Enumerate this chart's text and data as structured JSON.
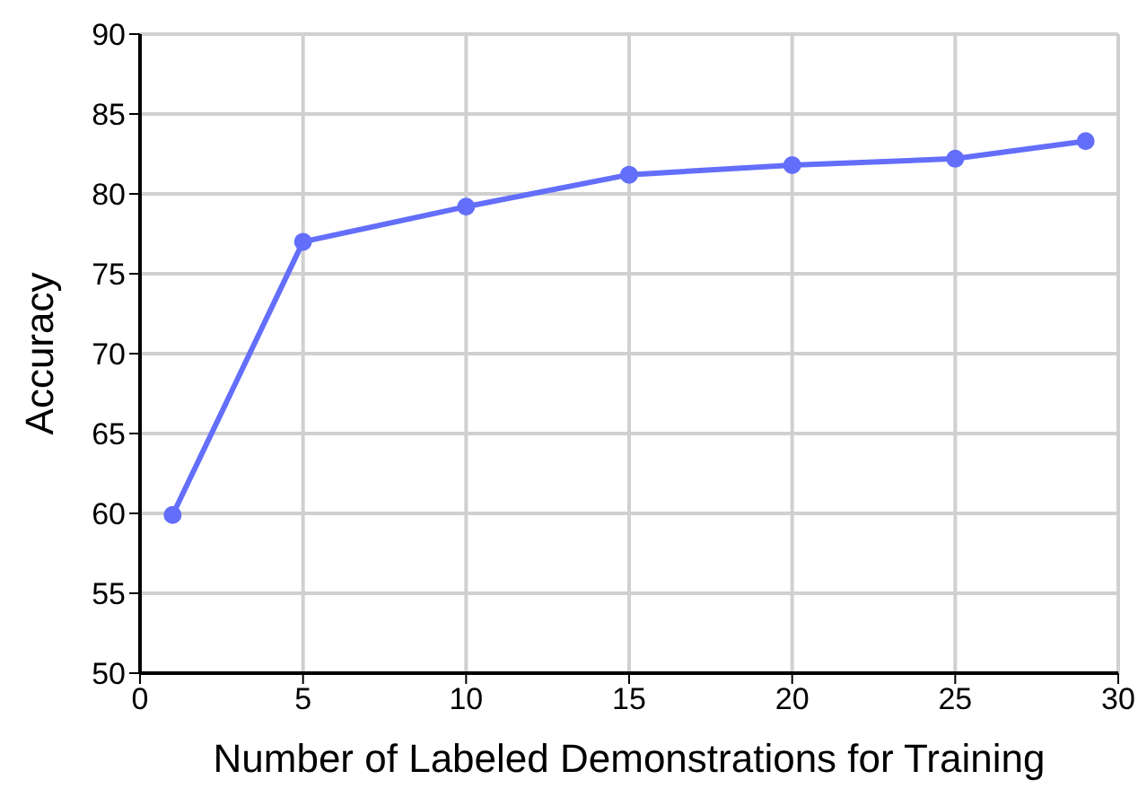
{
  "chart_data": {
    "type": "line",
    "xlabel": "Number of Labeled Demonstrations for Training",
    "ylabel": "Accuracy",
    "x": [
      1,
      5,
      10,
      15,
      20,
      25,
      29
    ],
    "series": [
      {
        "color": "#636efa",
        "values": [
          59.9,
          77.0,
          79.2,
          81.2,
          81.8,
          82.2,
          83.3
        ]
      }
    ],
    "xlim": [
      0,
      30
    ],
    "xticks": [
      0,
      5,
      10,
      15,
      20,
      25,
      30
    ],
    "ylim": [
      50,
      90
    ],
    "yticks": [
      50,
      55,
      60,
      65,
      70,
      75,
      80,
      85,
      90
    ],
    "grid": true,
    "marker": "circle",
    "line_style": "solid",
    "legend": false
  }
}
